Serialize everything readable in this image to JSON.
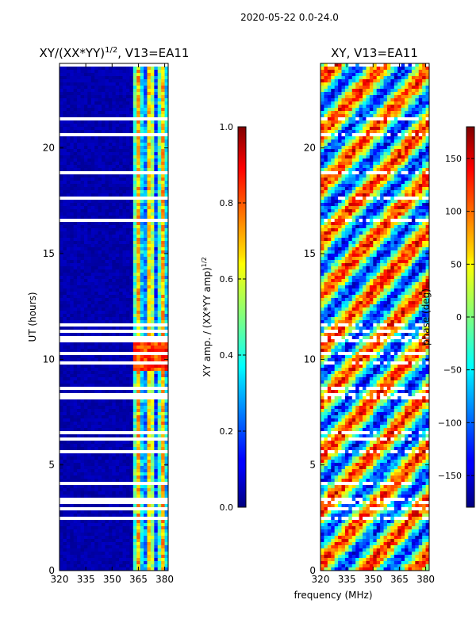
{
  "suptitle": "2020-05-22 0.0-24.0",
  "chart_data": [
    {
      "type": "heatmap",
      "title": "XY/(XX*YY)^1/2, V13=EA11",
      "title_main": "XY/(XX*YY)",
      "title_exp": "1/2",
      "title_tail": ", V13=EA11",
      "xlabel": "",
      "ylabel": "UT (hours)",
      "xlim": [
        320,
        382
      ],
      "ylim": [
        0,
        24
      ],
      "xticks": [
        "320",
        "335",
        "350",
        "365",
        "380"
      ],
      "xtick_values": [
        320,
        335,
        350,
        365,
        380
      ],
      "yticks": [
        "0",
        "5",
        "10",
        "15",
        "20"
      ],
      "ytick_values": [
        0,
        5,
        10,
        15,
        20
      ],
      "colorbar": {
        "label": "XY amp. / (XX*YY amp)^1/2",
        "label_main": "XY amp. / (XX*YY amp)",
        "label_exp": "1/2",
        "min": 0.0,
        "max": 1.0,
        "ticks": [
          "0.0",
          "0.2",
          "0.4",
          "0.6",
          "0.8",
          "1.0"
        ],
        "tick_values": [
          0.0,
          0.2,
          0.4,
          0.6,
          0.8,
          1.0
        ]
      },
      "bright_band_mhz": [
        363,
        382
      ],
      "colormap": "jet"
    },
    {
      "type": "heatmap",
      "title": "XY, V13=EA11",
      "xlabel": "frequency (MHz)",
      "ylabel": "",
      "xlim": [
        320,
        382
      ],
      "ylim": [
        0,
        24
      ],
      "xticks": [
        "320",
        "335",
        "350",
        "365",
        "380"
      ],
      "xtick_values": [
        320,
        335,
        350,
        365,
        380
      ],
      "yticks": [
        "0",
        "5",
        "10",
        "15",
        "20"
      ],
      "ytick_values": [
        0,
        5,
        10,
        15,
        20
      ],
      "colorbar": {
        "label": "phase (deg)",
        "min": -180,
        "max": 180,
        "ticks": [
          "−150",
          "−100",
          "−50",
          "0",
          "50",
          "100",
          "150"
        ],
        "tick_values": [
          -150,
          -100,
          -50,
          0,
          50,
          100,
          150
        ]
      },
      "colormap": "jet"
    }
  ]
}
